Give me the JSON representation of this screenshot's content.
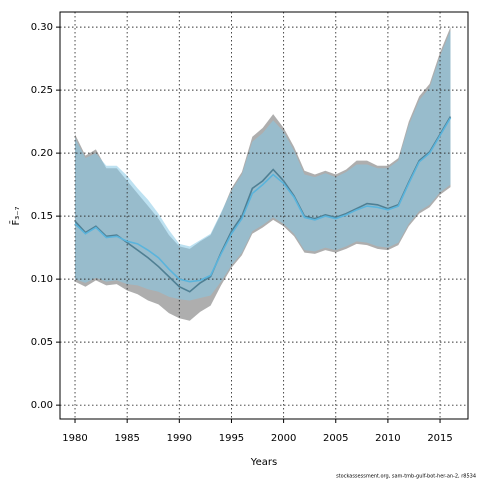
{
  "chart_data": {
    "type": "line",
    "x_label": "Years",
    "y_label": "F̄₃₋₇",
    "footer": "stockassessment.org, sam-tmb-gulf-bot-her-an-2, r8534",
    "x": [
      1980,
      1981,
      1982,
      1983,
      1984,
      1985,
      1986,
      1987,
      1988,
      1989,
      1990,
      1991,
      1992,
      1993,
      1994,
      1995,
      1996,
      1997,
      1998,
      1999,
      2000,
      2001,
      2002,
      2003,
      2004,
      2005,
      2006,
      2007,
      2008,
      2009,
      2010,
      2011,
      2012,
      2013,
      2014,
      2015,
      2016
    ],
    "series": [
      {
        "color": "#4f7f93",
        "band_color": "rgba(120,120,120,0.6)",
        "values": [
          0.146,
          0.137,
          0.142,
          0.134,
          0.135,
          0.129,
          0.123,
          0.117,
          0.11,
          0.102,
          0.094,
          0.09,
          0.097,
          0.102,
          0.121,
          0.138,
          0.15,
          0.172,
          0.178,
          0.187,
          0.178,
          0.166,
          0.15,
          0.148,
          0.151,
          0.149,
          0.152,
          0.156,
          0.16,
          0.159,
          0.156,
          0.159,
          0.177,
          0.194,
          0.201,
          0.215,
          0.229
        ],
        "upper": [
          0.215,
          0.198,
          0.203,
          0.188,
          0.188,
          0.178,
          0.168,
          0.158,
          0.148,
          0.135,
          0.126,
          0.124,
          0.13,
          0.135,
          0.152,
          0.172,
          0.185,
          0.213,
          0.22,
          0.231,
          0.22,
          0.205,
          0.186,
          0.183,
          0.186,
          0.183,
          0.187,
          0.194,
          0.194,
          0.19,
          0.19,
          0.196,
          0.225,
          0.245,
          0.255,
          0.28,
          0.3
        ],
        "lower": [
          0.098,
          0.094,
          0.099,
          0.095,
          0.096,
          0.091,
          0.088,
          0.083,
          0.08,
          0.073,
          0.069,
          0.067,
          0.074,
          0.079,
          0.095,
          0.109,
          0.119,
          0.136,
          0.141,
          0.147,
          0.142,
          0.134,
          0.121,
          0.12,
          0.123,
          0.121,
          0.124,
          0.128,
          0.127,
          0.124,
          0.123,
          0.127,
          0.142,
          0.152,
          0.157,
          0.167,
          0.173
        ]
      },
      {
        "color": "#5ab4dc",
        "band_color": "rgba(135,200,230,0.55)",
        "values": [
          0.144,
          0.136,
          0.141,
          0.133,
          0.134,
          0.13,
          0.128,
          0.123,
          0.117,
          0.108,
          0.1,
          0.098,
          0.099,
          0.103,
          0.12,
          0.136,
          0.148,
          0.168,
          0.175,
          0.183,
          0.176,
          0.165,
          0.149,
          0.147,
          0.15,
          0.148,
          0.151,
          0.155,
          0.158,
          0.157,
          0.155,
          0.158,
          0.176,
          0.193,
          0.2,
          0.214,
          0.228
        ],
        "upper": [
          0.212,
          0.196,
          0.2,
          0.19,
          0.19,
          0.182,
          0.172,
          0.163,
          0.152,
          0.139,
          0.128,
          0.126,
          0.131,
          0.136,
          0.153,
          0.17,
          0.183,
          0.209,
          0.216,
          0.226,
          0.217,
          0.202,
          0.183,
          0.181,
          0.184,
          0.181,
          0.185,
          0.191,
          0.191,
          0.188,
          0.188,
          0.194,
          0.222,
          0.242,
          0.252,
          0.277,
          0.297
        ],
        "lower": [
          0.1,
          0.097,
          0.101,
          0.098,
          0.099,
          0.096,
          0.095,
          0.092,
          0.09,
          0.086,
          0.084,
          0.083,
          0.085,
          0.087,
          0.098,
          0.111,
          0.121,
          0.138,
          0.143,
          0.149,
          0.144,
          0.136,
          0.123,
          0.122,
          0.125,
          0.123,
          0.126,
          0.13,
          0.129,
          0.126,
          0.125,
          0.129,
          0.144,
          0.154,
          0.159,
          0.169,
          0.175
        ]
      }
    ],
    "xlim": [
      1978.56,
      2017.68
    ],
    "ylim": [
      -0.011,
      0.312
    ],
    "xticks": [
      1980,
      1985,
      1990,
      1995,
      2000,
      2005,
      2010,
      2015
    ],
    "yticks": [
      {
        "value": 0,
        "label": "0.00"
      },
      {
        "value": 0.05,
        "label": "0.05"
      },
      {
        "value": 0.1,
        "label": "0.10"
      },
      {
        "value": 0.15,
        "label": "0.15"
      },
      {
        "value": 0.2,
        "label": "0.20"
      },
      {
        "value": 0.25,
        "label": "0.25"
      },
      {
        "value": 0.3,
        "label": "0.30"
      }
    ],
    "grid": true
  }
}
